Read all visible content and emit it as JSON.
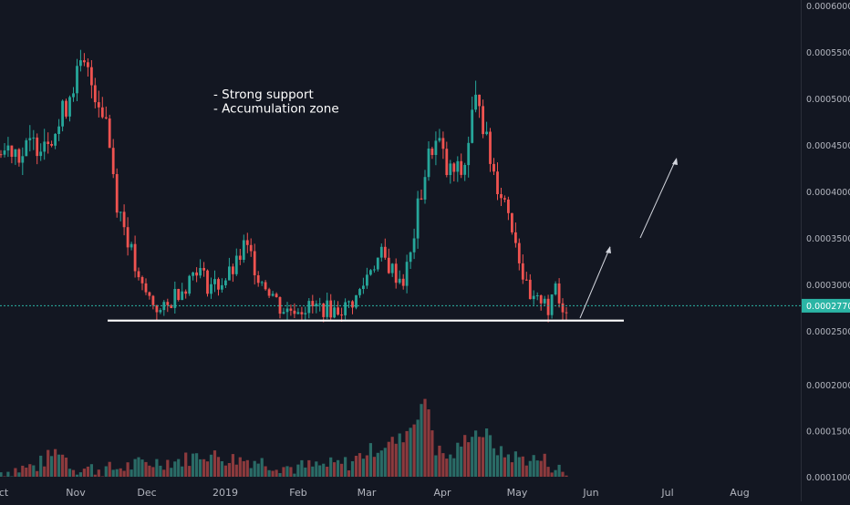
{
  "chart_data": {
    "type": "candlestick",
    "x_tick_labels": [
      "ct",
      "Nov",
      "Dec",
      "2019",
      "Feb",
      "Mar",
      "Apr",
      "May",
      "Jun",
      "Jul",
      "Aug"
    ],
    "price_tick_labels": [
      "0.0006000",
      "0.0005500",
      "0.0005000",
      "0.0004500",
      "0.0004000",
      "0.0003500",
      "0.0003000",
      "0.0002500",
      "0.0002000",
      "0.0001500",
      "0.0001000"
    ],
    "price_ylim": [
      0.000245,
      0.0006
    ],
    "volume_ylim": [
      0.0001,
      0.000225
    ],
    "current_price": 0.000277,
    "current_price_label": "0.0002770",
    "support_level": 0.000261,
    "annotation_lines": [
      "- Strong support",
      "- Accumulation zone"
    ],
    "price_keypoints": [
      [
        0,
        0.00044
      ],
      [
        3,
        0.00045
      ],
      [
        6,
        0.00044
      ],
      [
        9,
        0.00045
      ],
      [
        12,
        0.00046
      ],
      [
        16,
        0.00047
      ],
      [
        20,
        0.00052
      ],
      [
        23,
        0.00053
      ],
      [
        26,
        0.00051
      ],
      [
        29,
        0.00048
      ],
      [
        32,
        0.00039
      ],
      [
        35,
        0.00035
      ],
      [
        38,
        0.0003
      ],
      [
        40,
        0.00029
      ],
      [
        42,
        0.00028
      ],
      [
        44,
        0.00027
      ],
      [
        46,
        0.000275
      ],
      [
        48,
        0.00029
      ],
      [
        51,
        0.0003
      ],
      [
        54,
        0.00032
      ],
      [
        57,
        0.0003
      ],
      [
        60,
        0.0003
      ],
      [
        63,
        0.00031
      ],
      [
        65,
        0.00032
      ],
      [
        67,
        0.00034
      ],
      [
        69,
        0.00033
      ],
      [
        71,
        0.00031
      ],
      [
        73,
        0.0003
      ],
      [
        75,
        0.00029
      ],
      [
        77,
        0.000275
      ],
      [
        79,
        0.000272
      ],
      [
        81,
        0.000275
      ],
      [
        85,
        0.000275
      ],
      [
        88,
        0.000275
      ],
      [
        92,
        0.000272
      ],
      [
        95,
        0.000275
      ],
      [
        98,
        0.000285
      ],
      [
        100,
        0.0003
      ],
      [
        102,
        0.00032
      ],
      [
        105,
        0.00033
      ],
      [
        107,
        0.00032
      ],
      [
        109,
        0.00031
      ],
      [
        111,
        0.000305
      ],
      [
        113,
        0.00033
      ],
      [
        115,
        0.00038
      ],
      [
        117,
        0.00042
      ],
      [
        119,
        0.00045
      ],
      [
        121,
        0.00045
      ],
      [
        123,
        0.00042
      ],
      [
        125,
        0.00042
      ],
      [
        127,
        0.00042
      ],
      [
        128,
        0.00043
      ],
      [
        130,
        0.00048
      ],
      [
        132,
        0.000505
      ],
      [
        134,
        0.00045
      ],
      [
        136,
        0.00042
      ],
      [
        138,
        0.0004
      ],
      [
        140,
        0.00038
      ],
      [
        142,
        0.00035
      ],
      [
        144,
        0.00031
      ],
      [
        146,
        0.00028
      ],
      [
        148,
        0.00028
      ],
      [
        150,
        0.00029
      ],
      [
        151,
        0.00027
      ],
      [
        152,
        0.00028
      ],
      [
        153,
        0.0003
      ],
      [
        154,
        0.00028
      ],
      [
        155,
        0.000276
      ],
      [
        156,
        0.000277
      ]
    ],
    "volume_keypoints": [
      [
        0,
        0.000105
      ],
      [
        10,
        0.000112
      ],
      [
        16,
        0.00013
      ],
      [
        20,
        0.00011
      ],
      [
        30,
        0.000108
      ],
      [
        36,
        0.000112
      ],
      [
        40,
        0.000115
      ],
      [
        50,
        0.000118
      ],
      [
        56,
        0.000125
      ],
      [
        62,
        0.00012
      ],
      [
        70,
        0.000118
      ],
      [
        80,
        0.00011
      ],
      [
        90,
        0.000112
      ],
      [
        96,
        0.000115
      ],
      [
        100,
        0.000125
      ],
      [
        106,
        0.000135
      ],
      [
        110,
        0.00014
      ],
      [
        114,
        0.00016
      ],
      [
        116,
        0.00018
      ],
      [
        118,
        0.000175
      ],
      [
        120,
        0.00013
      ],
      [
        124,
        0.00012
      ],
      [
        128,
        0.00014
      ],
      [
        130,
        0.00015
      ],
      [
        134,
        0.000145
      ],
      [
        138,
        0.000125
      ],
      [
        144,
        0.00012
      ],
      [
        150,
        0.000118
      ],
      [
        156,
        0.000102
      ]
    ],
    "colors": {
      "background": "#131722",
      "up": "#26a69a",
      "down": "#ef5350",
      "volume_up": "#2a6b66",
      "volume_down": "#8c3a3d",
      "text": "#d1d4dc",
      "price_line": "#2bb5a5",
      "axis_text": "#b2b5be"
    }
  }
}
